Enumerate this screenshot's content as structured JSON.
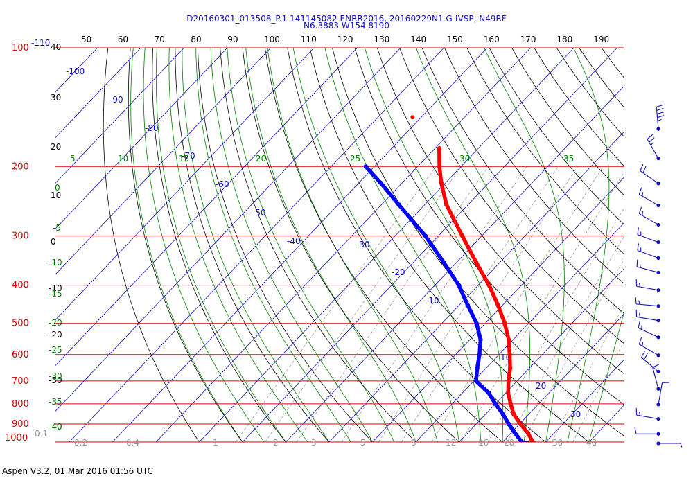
{
  "header": {
    "line1": "D20160301_013508_P.1 141145082 ENRR2016, 20160229N1 G-IVSP, N49RF",
    "line2": "N6.3883 W154.8190"
  },
  "footer": {
    "text": "Aspen V3.2, 01 Mar 2016  01:56 UTC"
  },
  "colors": {
    "isobar": "#e00000",
    "isotherm": "#1010c0",
    "dry_adiabat": "#000000",
    "moist_adiabat": "#008000",
    "mixing_ratio": "#9a9a9a",
    "temperature": "#ff0000",
    "dewpoint": "#0000ff"
  },
  "chart_data": {
    "type": "skew-t log-p",
    "pressure_range_hpa": [
      1000,
      100
    ],
    "isobars": [
      {
        "p": 100,
        "label": "100"
      },
      {
        "p": 200,
        "label": "200"
      },
      {
        "p": 300,
        "label": "300"
      },
      {
        "p": 400,
        "label": "400"
      },
      {
        "p": 500,
        "label": "500"
      },
      {
        "p": 600,
        "label": "600"
      },
      {
        "p": 700,
        "label": "700"
      },
      {
        "p": 800,
        "label": "800"
      },
      {
        "p": 900,
        "label": "900"
      },
      {
        "p": 1000,
        "label": "1000"
      }
    ],
    "isotherm_labels": [
      "-110",
      "-100",
      "-90",
      "-80",
      "-70",
      "-60",
      "-50",
      "-40",
      "-30",
      "-20",
      "-10",
      "10",
      "20",
      "30"
    ],
    "dry_adiabat_top_labels": [
      "50",
      "60",
      "70",
      "80",
      "90",
      "100",
      "110",
      "120",
      "130",
      "140",
      "150",
      "160",
      "170",
      "180",
      "190"
    ],
    "dry_adiabat_left_labels": [
      "40",
      "30",
      "20",
      "10",
      "0",
      "-10",
      "-20",
      "-30",
      "-40"
    ],
    "moist_adiabat_labels": [
      "5",
      "10",
      "15",
      "20",
      "25",
      "30",
      "35",
      "0",
      "-5",
      "-10",
      "-15",
      "-20",
      "-25",
      "-30",
      "-35",
      "-40"
    ],
    "mixing_ratio_labels": [
      "0.1",
      "0.2",
      "0.4",
      "1",
      "2",
      "3",
      "5",
      "8",
      "12",
      "16",
      "20",
      "30",
      "40"
    ],
    "temperature": [
      {
        "p": 1010,
        "t": 28.0
      },
      {
        "p": 1000,
        "t": 27.0
      },
      {
        "p": 950,
        "t": 24.0
      },
      {
        "p": 900,
        "t": 20.2
      },
      {
        "p": 850,
        "t": 16.5
      },
      {
        "p": 800,
        "t": 13.5
      },
      {
        "p": 750,
        "t": 10.5
      },
      {
        "p": 700,
        "t": 8.0
      },
      {
        "p": 650,
        "t": 5.6
      },
      {
        "p": 600,
        "t": 2.5
      },
      {
        "p": 550,
        "t": -1.0
      },
      {
        "p": 500,
        "t": -5.5
      },
      {
        "p": 450,
        "t": -11.0
      },
      {
        "p": 400,
        "t": -17.5
      },
      {
        "p": 350,
        "t": -25.5
      },
      {
        "p": 300,
        "t": -34.5
      },
      {
        "p": 250,
        "t": -45.0
      },
      {
        "p": 220,
        "t": -51.0
      },
      {
        "p": 200,
        "t": -55.0
      },
      {
        "p": 180,
        "t": -59.0
      }
    ],
    "temperature_isolated_point": {
      "p": 150,
      "t": -72.0
    },
    "dewpoint": [
      {
        "p": 1010,
        "t": 27.0
      },
      {
        "p": 1000,
        "t": 24.5
      },
      {
        "p": 950,
        "t": 21.0
      },
      {
        "p": 900,
        "t": 17.5
      },
      {
        "p": 850,
        "t": 14.0
      },
      {
        "p": 800,
        "t": 10.0
      },
      {
        "p": 750,
        "t": 6.0
      },
      {
        "p": 700,
        "t": 0.5
      },
      {
        "p": 650,
        "t": -2.0
      },
      {
        "p": 600,
        "t": -4.5
      },
      {
        "p": 550,
        "t": -7.5
      },
      {
        "p": 500,
        "t": -12.0
      },
      {
        "p": 450,
        "t": -18.0
      },
      {
        "p": 400,
        "t": -24.5
      },
      {
        "p": 350,
        "t": -33.0
      },
      {
        "p": 300,
        "t": -43.0
      },
      {
        "p": 250,
        "t": -56.0
      },
      {
        "p": 220,
        "t": -65.0
      },
      {
        "p": 200,
        "t": -72.0
      }
    ],
    "wind_barbs": [
      {
        "p": 160,
        "dir": 355,
        "kt": 45
      },
      {
        "p": 190,
        "dir": 330,
        "kt": 25
      },
      {
        "p": 220,
        "dir": 305,
        "kt": 20
      },
      {
        "p": 250,
        "dir": 300,
        "kt": 15
      },
      {
        "p": 280,
        "dir": 300,
        "kt": 15
      },
      {
        "p": 310,
        "dir": 290,
        "kt": 15
      },
      {
        "p": 340,
        "dir": 290,
        "kt": 15
      },
      {
        "p": 370,
        "dir": 285,
        "kt": 15
      },
      {
        "p": 410,
        "dir": 280,
        "kt": 15
      },
      {
        "p": 450,
        "dir": 275,
        "kt": 15
      },
      {
        "p": 490,
        "dir": 280,
        "kt": 15
      },
      {
        "p": 540,
        "dir": 295,
        "kt": 15
      },
      {
        "p": 600,
        "dir": 300,
        "kt": 15
      },
      {
        "p": 660,
        "dir": 310,
        "kt": 20
      },
      {
        "p": 730,
        "dir": 345,
        "kt": 10
      },
      {
        "p": 800,
        "dir": 10,
        "kt": 10
      },
      {
        "p": 870,
        "dir": 280,
        "kt": 15
      },
      {
        "p": 950,
        "dir": 270,
        "kt": 10
      },
      {
        "p": 1010,
        "dir": 90,
        "kt": 5
      }
    ]
  }
}
